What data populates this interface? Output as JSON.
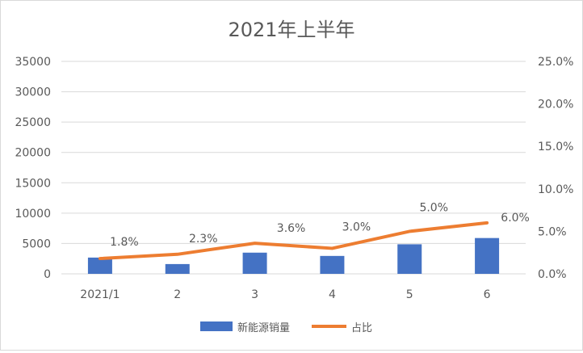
{
  "chart_data": {
    "type": "bar+line",
    "title": "2021年上半年",
    "categories": [
      "2021/1",
      "2",
      "3",
      "4",
      "5",
      "6"
    ],
    "series": [
      {
        "name": "新能源销量",
        "type": "bar",
        "axis": "left",
        "color": "#4472c4",
        "values": [
          2680,
          1610,
          3490,
          2950,
          4870,
          5900
        ]
      },
      {
        "name": "占比",
        "type": "line",
        "axis": "right",
        "color": "#ed7d31",
        "values": [
          1.8,
          2.3,
          3.6,
          3.0,
          5.0,
          6.0
        ],
        "labels": [
          "1.8%",
          "2.3%",
          "3.6%",
          "3.0%",
          "5.0%",
          "6.0%"
        ]
      }
    ],
    "left_axis": {
      "min": 0,
      "max": 35000,
      "ticks": [
        "0",
        "5000",
        "10000",
        "15000",
        "20000",
        "25000",
        "30000",
        "35000"
      ]
    },
    "right_axis": {
      "min": 0,
      "max": 25,
      "ticks": [
        "0.0%",
        "5.0%",
        "10.0%",
        "15.0%",
        "20.0%",
        "25.0%"
      ]
    },
    "grid": true,
    "legend": "bottom"
  }
}
